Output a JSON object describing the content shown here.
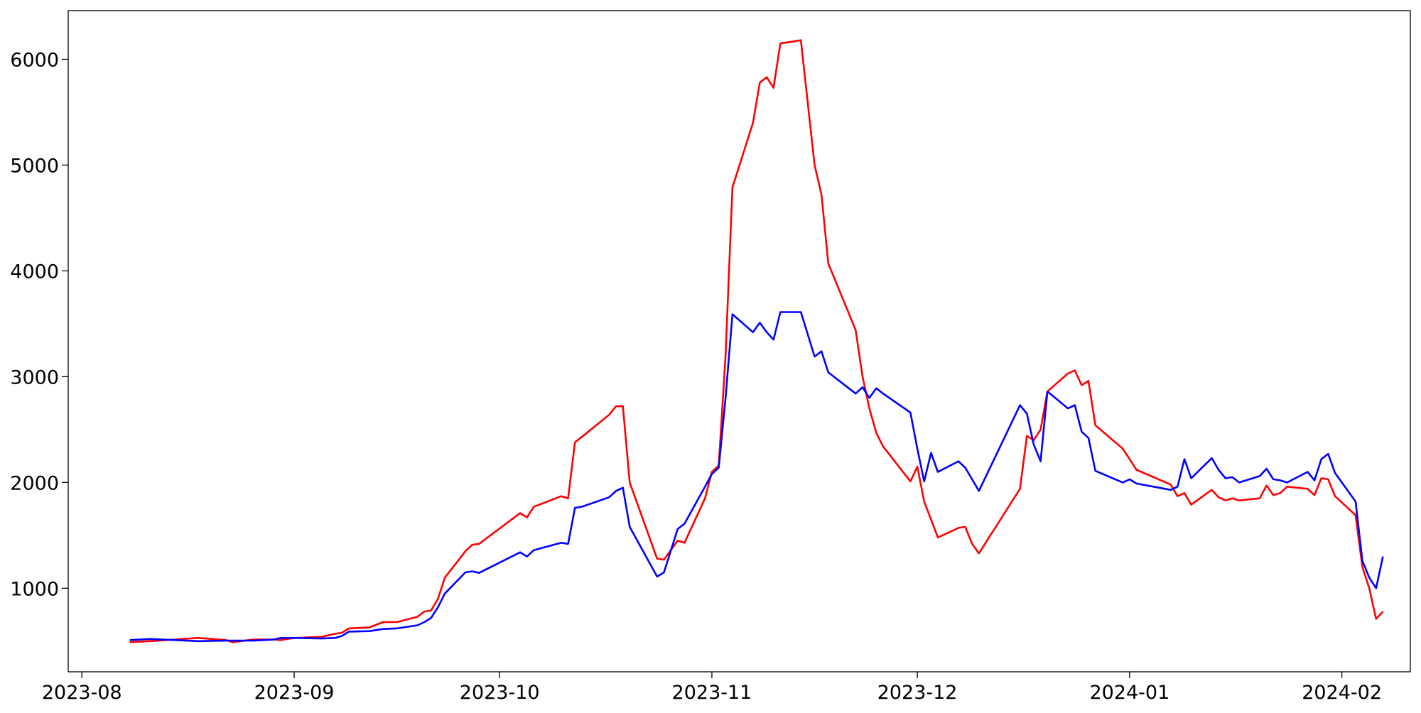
{
  "chart_data": {
    "type": "line",
    "x": [
      7,
      10,
      17,
      21,
      22,
      25,
      28,
      29,
      31,
      35,
      37,
      38,
      39,
      42,
      44,
      46,
      49,
      50,
      51,
      52,
      53,
      56,
      57,
      58,
      64,
      65,
      66,
      70,
      71,
      72,
      73,
      77,
      78,
      79,
      80,
      84,
      85,
      87,
      88,
      91,
      92,
      93,
      94,
      95,
      98,
      99,
      100,
      101,
      102,
      105,
      107,
      108,
      109,
      113,
      114,
      115,
      116,
      117,
      121,
      122,
      123,
      124,
      125,
      128,
      129,
      130,
      131,
      137,
      138,
      139,
      140,
      141,
      144,
      145,
      146,
      147,
      148,
      152,
      153,
      154,
      159,
      160,
      161,
      162,
      165,
      166,
      167,
      168,
      169,
      172,
      173,
      174,
      175,
      176,
      179,
      180,
      181,
      182,
      183,
      186,
      187,
      188,
      189,
      190
    ],
    "series": [
      {
        "color": "#ff0000",
        "values": [
          490,
          500,
          530,
          510,
          490,
          515,
          515,
          510,
          530,
          540,
          570,
          580,
          620,
          630,
          680,
          680,
          730,
          780,
          790,
          900,
          1100,
          1350,
          1410,
          1420,
          1710,
          1670,
          1770,
          1870,
          1850,
          2380,
          2430,
          2640,
          2720,
          2720,
          2000,
          1280,
          1270,
          1450,
          1430,
          1850,
          2100,
          2160,
          3200,
          4790,
          5400,
          5780,
          5830,
          5730,
          6150,
          6180,
          5000,
          4720,
          4070,
          3440,
          3000,
          2700,
          2470,
          2340,
          2010,
          2150,
          1820,
          1650,
          1480,
          1570,
          1580,
          1420,
          1330,
          1940,
          2440,
          2400,
          2500,
          2860,
          3030,
          3060,
          2920,
          2960,
          2540,
          2320,
          2220,
          2120,
          1980,
          1870,
          1900,
          1790,
          1930,
          1860,
          1830,
          1850,
          1830,
          1850,
          1970,
          1880,
          1900,
          1960,
          1940,
          1880,
          2040,
          2030,
          1870,
          1690,
          1200,
          1000,
          710,
          780
        ]
      },
      {
        "color": "#0000ff",
        "values": [
          510,
          520,
          500,
          505,
          505,
          505,
          515,
          530,
          530,
          525,
          530,
          550,
          590,
          595,
          615,
          620,
          650,
          680,
          720,
          820,
          950,
          1150,
          1160,
          1145,
          1340,
          1300,
          1360,
          1430,
          1420,
          1760,
          1770,
          1860,
          1920,
          1950,
          1580,
          1110,
          1150,
          1560,
          1610,
          1960,
          2080,
          2140,
          2800,
          3590,
          3420,
          3510,
          3420,
          3350,
          3610,
          3610,
          3190,
          3240,
          3040,
          2840,
          2900,
          2800,
          2890,
          2840,
          2660,
          2320,
          2010,
          2280,
          2100,
          2200,
          2140,
          2030,
          1920,
          2730,
          2650,
          2360,
          2200,
          2860,
          2700,
          2730,
          2480,
          2420,
          2110,
          2000,
          2030,
          1990,
          1930,
          1960,
          2220,
          2040,
          2230,
          2120,
          2040,
          2050,
          2000,
          2060,
          2130,
          2030,
          2020,
          2000,
          2100,
          2020,
          2220,
          2270,
          2090,
          1820,
          1260,
          1100,
          1000,
          1300
        ]
      }
    ],
    "xlim": [
      -2,
      194
    ],
    "xticks": [
      {
        "value": 0,
        "label": "2023-08"
      },
      {
        "value": 31,
        "label": "2023-09"
      },
      {
        "value": 61,
        "label": "2023-10"
      },
      {
        "value": 92,
        "label": "2023-11"
      },
      {
        "value": 122,
        "label": "2023-12"
      },
      {
        "value": 153,
        "label": "2024-01"
      },
      {
        "value": 184,
        "label": "2024-02"
      }
    ],
    "ylim": [
      210,
      6460
    ],
    "yticks": [
      1000,
      2000,
      3000,
      4000,
      5000,
      6000
    ]
  }
}
